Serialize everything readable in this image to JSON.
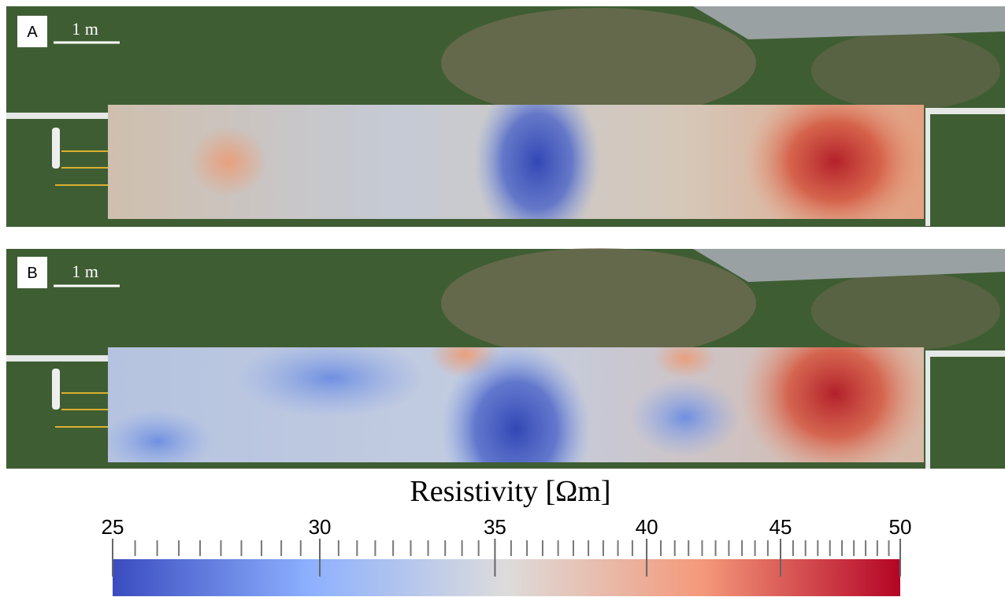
{
  "chart_data": {
    "type": "colorbar",
    "title": "Resistivity [Ωm]",
    "log_scale": true,
    "xlim": [
      25,
      50
    ],
    "xticks": [
      25,
      30,
      35,
      40,
      45,
      50
    ],
    "minor_xticks": [
      25.5,
      26,
      26.5,
      27,
      27.5,
      28,
      28.5,
      29,
      29.5,
      30.5,
      31,
      31.5,
      32,
      32.5,
      33,
      33.5,
      34,
      34.5,
      35.5,
      36,
      36.5,
      37,
      37.5,
      38,
      38.5,
      39,
      39.5,
      40.5,
      41,
      41.5,
      42,
      42.5,
      43,
      43.5,
      44,
      44.5,
      45.5,
      46,
      46.5,
      47,
      47.5,
      48,
      48.5,
      49,
      49.5
    ],
    "colors": [
      "#3a4cc0",
      "#8db0fe",
      "#dddcdb",
      "#f4987a",
      "#b40426"
    ],
    "panels": [
      {
        "label": "A",
        "scale_label": "1 m"
      },
      {
        "label": "B",
        "scale_label": "1 m"
      }
    ]
  }
}
